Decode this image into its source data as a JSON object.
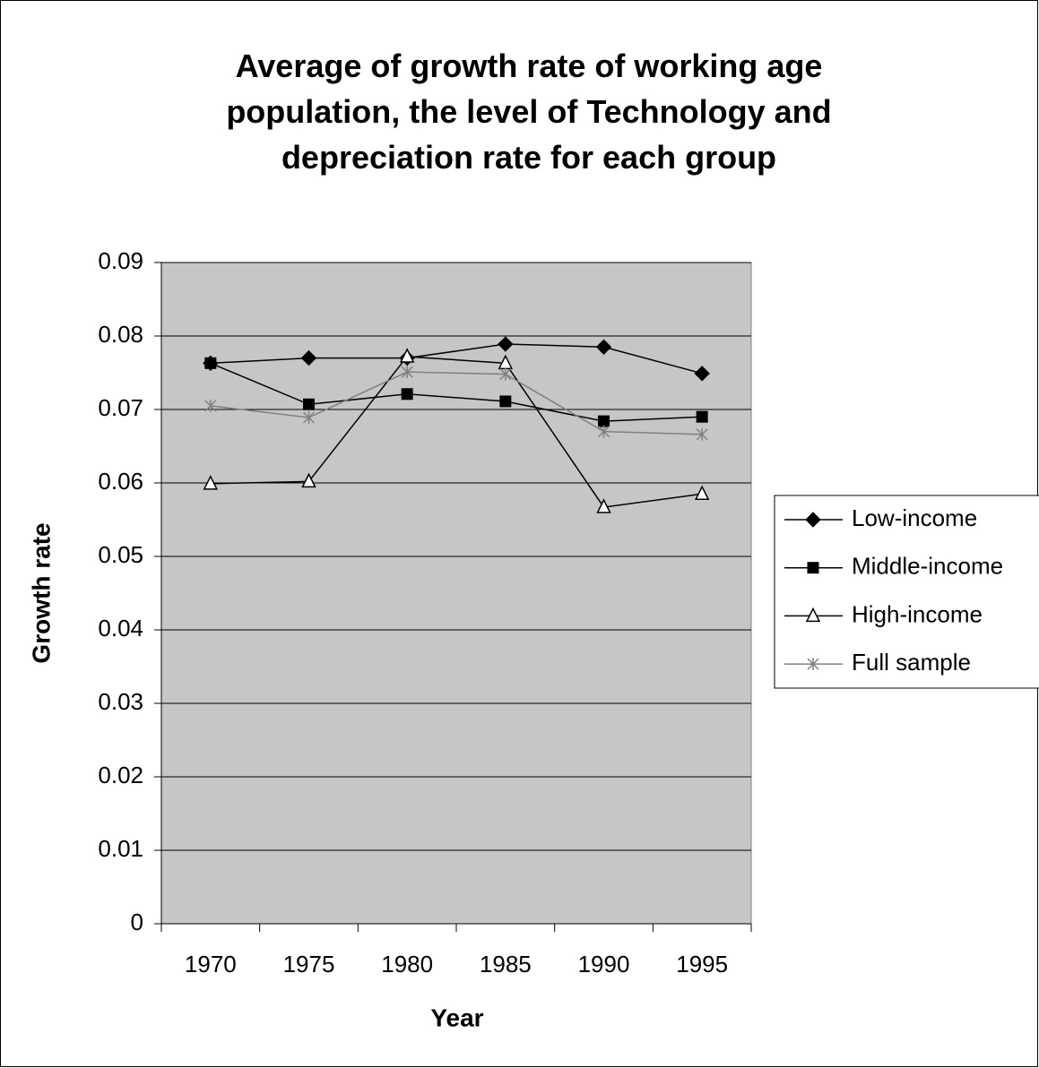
{
  "chart_data": {
    "type": "line",
    "title": "Average of growth rate of working age population, the level of Technology and depreciation rate for each group",
    "x_label": "Year",
    "y_label": "Growth rate",
    "categories": [
      "1970",
      "1975",
      "1980",
      "1985",
      "1990",
      "1995"
    ],
    "series": [
      {
        "name": "Low-income",
        "color": "#000000",
        "marker": "diamond",
        "values": [
          0.0763,
          0.077,
          0.077,
          0.0789,
          0.0785,
          0.0749
        ]
      },
      {
        "name": "Middle-income",
        "color": "#000000",
        "marker": "square",
        "values": [
          0.0763,
          0.0707,
          0.0721,
          0.0711,
          0.0684,
          0.069
        ]
      },
      {
        "name": "High-income",
        "color": "#000000",
        "marker": "triangle",
        "values": [
          0.0599,
          0.0602,
          0.0772,
          0.0763,
          0.0567,
          0.0585
        ]
      },
      {
        "name": "Full sample",
        "color": "#808080",
        "marker": "cross",
        "values": [
          0.0705,
          0.0689,
          0.0751,
          0.0748,
          0.067,
          0.0666
        ]
      }
    ],
    "ylim": [
      0,
      0.09
    ],
    "yticks": [
      0,
      0.01,
      0.02,
      0.03,
      0.04,
      0.05,
      0.06,
      0.07,
      0.08,
      0.09
    ],
    "grid": true,
    "legend": "right"
  }
}
